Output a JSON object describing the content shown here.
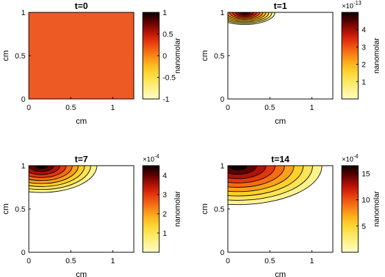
{
  "chart_data": [
    {
      "type": "heatmap",
      "title": "t=0",
      "xlabel": "cm",
      "ylabel": "cm",
      "xlim": [
        0,
        1.25
      ],
      "ylim": [
        0,
        1
      ],
      "xticks": [
        "0",
        "0.5",
        "1"
      ],
      "yticks": [
        "0",
        "0.5",
        "1"
      ],
      "fill_value": 0.1,
      "fill_color": "#ee5a24",
      "colorbar": {
        "label": "nanomolar",
        "range": [
          -1,
          1
        ],
        "multiplier": "",
        "ticks": [
          1,
          0.5,
          0,
          -0.5,
          -1
        ],
        "tick_labels": [
          "1",
          "0.5",
          "0",
          "-0.5",
          "-1"
        ]
      }
    },
    {
      "type": "heatmap",
      "title": "t=1",
      "xlabel": "cm",
      "ylabel": "cm",
      "xlim": [
        0,
        1.25
      ],
      "ylim": [
        0,
        1
      ],
      "xticks": [
        "0",
        "0.5",
        "1"
      ],
      "yticks": [
        "0",
        "0.5",
        "1"
      ],
      "source": {
        "x": 0.2,
        "y": 1.0,
        "rx": 0.36,
        "ry": 0.14
      },
      "contour_levels": 10,
      "colorbar": {
        "label": "nanomolar",
        "range": [
          0,
          5
        ],
        "multiplier_base": "×10",
        "multiplier_exp": "-13",
        "ticks": [
          4,
          3,
          2,
          1
        ],
        "tick_labels": [
          "4",
          "3",
          "2",
          "1"
        ]
      }
    },
    {
      "type": "heatmap",
      "title": "t=7",
      "xlabel": "cm",
      "ylabel": "cm",
      "xlim": [
        0,
        1.25
      ],
      "ylim": [
        0,
        1
      ],
      "xticks": [
        "0",
        "0.5",
        "1"
      ],
      "yticks": [
        "0",
        "0.5",
        "1"
      ],
      "source": {
        "x": 0.15,
        "y": 1.0,
        "rx": 0.66,
        "ry": 0.31
      },
      "contour_levels": 9,
      "colorbar": {
        "label": "nanomolar",
        "range": [
          0,
          4.5
        ],
        "multiplier_base": "×10",
        "multiplier_exp": "-4",
        "ticks": [
          4,
          3,
          2,
          1
        ],
        "tick_labels": [
          "4",
          "3",
          "2",
          "1"
        ]
      }
    },
    {
      "type": "heatmap",
      "title": "t=14",
      "xlabel": "cm",
      "ylabel": "cm",
      "xlim": [
        0,
        1.25
      ],
      "ylim": [
        0,
        1
      ],
      "xticks": [
        "0",
        "0.5",
        "1"
      ],
      "yticks": [
        "0",
        "0.5",
        "1"
      ],
      "source": {
        "x": 0.12,
        "y": 1.0,
        "rx": 1.0,
        "ry": 0.45
      },
      "contour_levels": 9,
      "colorbar": {
        "label": "nanomolar",
        "range": [
          0,
          16.5
        ],
        "multiplier_base": "×10",
        "multiplier_exp": "-4",
        "ticks": [
          15,
          10,
          5
        ],
        "tick_labels": [
          "15",
          "10",
          "5"
        ]
      }
    }
  ]
}
